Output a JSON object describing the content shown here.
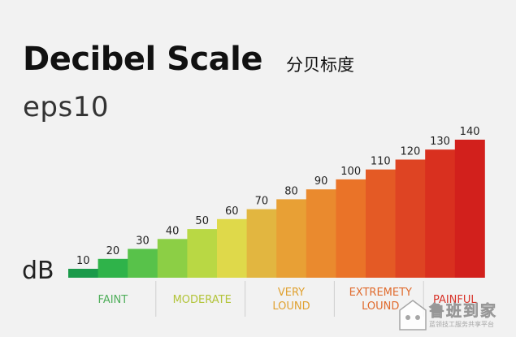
{
  "header": {
    "title": "Decibel Scale",
    "title_cn": "分贝标度",
    "subtitle": "eps10"
  },
  "chart_data": {
    "type": "bar",
    "ylabel": "dB",
    "categories": [
      "10",
      "20",
      "30",
      "40",
      "50",
      "60",
      "70",
      "80",
      "90",
      "100",
      "110",
      "120",
      "130",
      "140"
    ],
    "values": [
      10,
      20,
      30,
      40,
      50,
      60,
      70,
      80,
      90,
      100,
      110,
      120,
      130,
      140
    ],
    "colors": [
      "#1a9a4a",
      "#2fb34a",
      "#58c24a",
      "#8ccf45",
      "#b9d844",
      "#dfd94a",
      "#e2b640",
      "#e8a035",
      "#ea8a2e",
      "#ea7328",
      "#e45a25",
      "#de4423",
      "#d9301f",
      "#d2201c"
    ],
    "groups": [
      {
        "label": [
          "FAINT"
        ],
        "color": "#4fae5a",
        "start": 0,
        "end": 3
      },
      {
        "label": [
          "MODERATE"
        ],
        "color": "#b3c43a",
        "start": 3,
        "end": 6
      },
      {
        "label": [
          "VERY",
          "LOUND"
        ],
        "color": "#e0a130",
        "start": 6,
        "end": 9
      },
      {
        "label": [
          "EXTREMETY",
          "LOUND"
        ],
        "color": "#e06a2c",
        "start": 9,
        "end": 12
      },
      {
        "label": [
          "PAINFUL"
        ],
        "color": "#d8342a",
        "start": 12,
        "end": 14
      }
    ]
  },
  "watermark": {
    "text": "鲁班到家",
    "subtext": "蓝领技工服务共享平台"
  }
}
